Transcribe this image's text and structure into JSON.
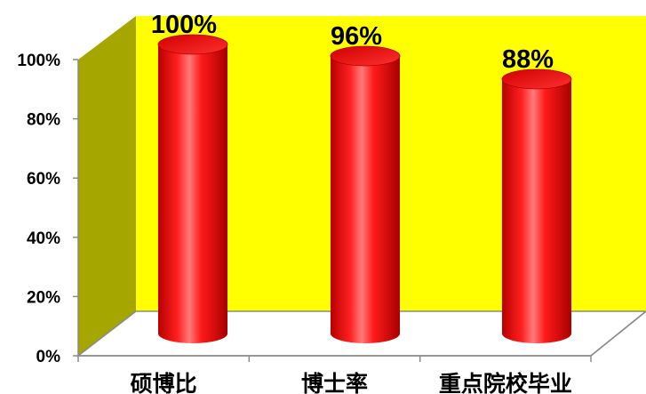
{
  "chart_data": {
    "type": "bar",
    "style": "3d-cylinder",
    "categories": [
      "硕博比",
      "博士率",
      "重点院校毕业"
    ],
    "values": [
      100,
      96,
      88
    ],
    "data_labels": [
      "100%",
      "96%",
      "88%"
    ],
    "y_ticks": [
      "0%",
      "20%",
      "40%",
      "60%",
      "80%",
      "100%"
    ],
    "ylim": [
      0,
      100
    ],
    "grid": false,
    "legend": "none",
    "colors": {
      "back_wall": "#ffff00",
      "side_wall": "#a6a600",
      "floor": "#ffffff",
      "bar": "#ff0000",
      "bar_dark": "#b40000",
      "bar_highlight": "#ff7070"
    }
  }
}
